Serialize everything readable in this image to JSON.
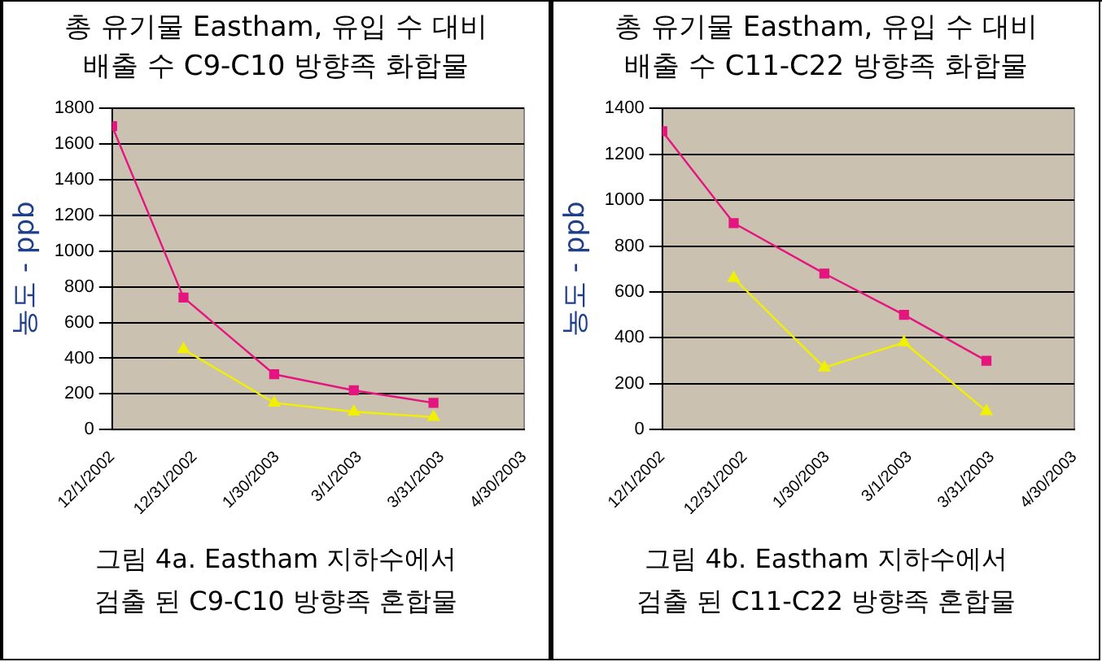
{
  "chart_data": [
    {
      "type": "line",
      "title": "총 유기물 Eastham, 유입 수 대비\n배출 수 C9-C10 방향족 화합물",
      "ylabel": "농도 - ppb",
      "annotations": [
        "그림 4a.  Eastham 지하수에서\n검출 된 C9-C10 방향족 혼합물"
      ],
      "x": [
        "2002-12-01",
        "2002-12-27",
        "2003-01-29",
        "2003-02-27",
        "2003-03-28"
      ],
      "series": [
        {
          "color": "#e4157f",
          "marker": "square",
          "values": [
            1700,
            740,
            310,
            220,
            150
          ]
        },
        {
          "color": "#f0f000",
          "marker": "triangle",
          "values": [
            null,
            450,
            150,
            100,
            70
          ]
        }
      ],
      "xlim": [
        "2002-12-01",
        "2003-04-30"
      ],
      "xticks": [
        {
          "value": "2002-12-01",
          "label": "12/1/2002"
        },
        {
          "value": "2002-12-31",
          "label": "12/31/2002"
        },
        {
          "value": "2003-01-30",
          "label": "1/30/2003"
        },
        {
          "value": "2003-03-01",
          "label": "3/1/2003"
        },
        {
          "value": "2003-03-31",
          "label": "3/31/2003"
        },
        {
          "value": "2003-04-30",
          "label": "4/30/2003"
        }
      ],
      "ylim": [
        0,
        1800
      ],
      "yticks": [
        0,
        200,
        400,
        600,
        800,
        1000,
        1200,
        1400,
        1600,
        1800
      ],
      "grid": "y",
      "legend": false
    },
    {
      "type": "line",
      "title": "총 유기물 Eastham, 유입 수 대비\n배출 수 C11-C22 방향족 화합물",
      "ylabel": "농도 - ppb",
      "annotations": [
        "그림 4b.  Eastham 지하수에서\n검출 된 C11-C22 방향족 혼합물"
      ],
      "x": [
        "2002-12-01",
        "2002-12-27",
        "2003-01-29",
        "2003-02-27",
        "2003-03-29"
      ],
      "series": [
        {
          "color": "#e4157f",
          "marker": "square",
          "values": [
            1300,
            900,
            680,
            500,
            300
          ]
        },
        {
          "color": "#f0f000",
          "marker": "triangle",
          "values": [
            null,
            660,
            270,
            380,
            80
          ]
        }
      ],
      "xlim": [
        "2002-12-01",
        "2003-04-30"
      ],
      "xticks": [
        {
          "value": "2002-12-01",
          "label": "12/1/2002"
        },
        {
          "value": "2002-12-31",
          "label": "12/31/2002"
        },
        {
          "value": "2003-01-30",
          "label": "1/30/2003"
        },
        {
          "value": "2003-03-01",
          "label": "3/1/2003"
        },
        {
          "value": "2003-03-31",
          "label": "3/31/2003"
        },
        {
          "value": "2003-04-30",
          "label": "4/30/2003"
        }
      ],
      "ylim": [
        0,
        1400
      ],
      "yticks": [
        0,
        200,
        400,
        600,
        800,
        1000,
        1200,
        1400
      ],
      "grid": "y",
      "legend": false
    }
  ]
}
